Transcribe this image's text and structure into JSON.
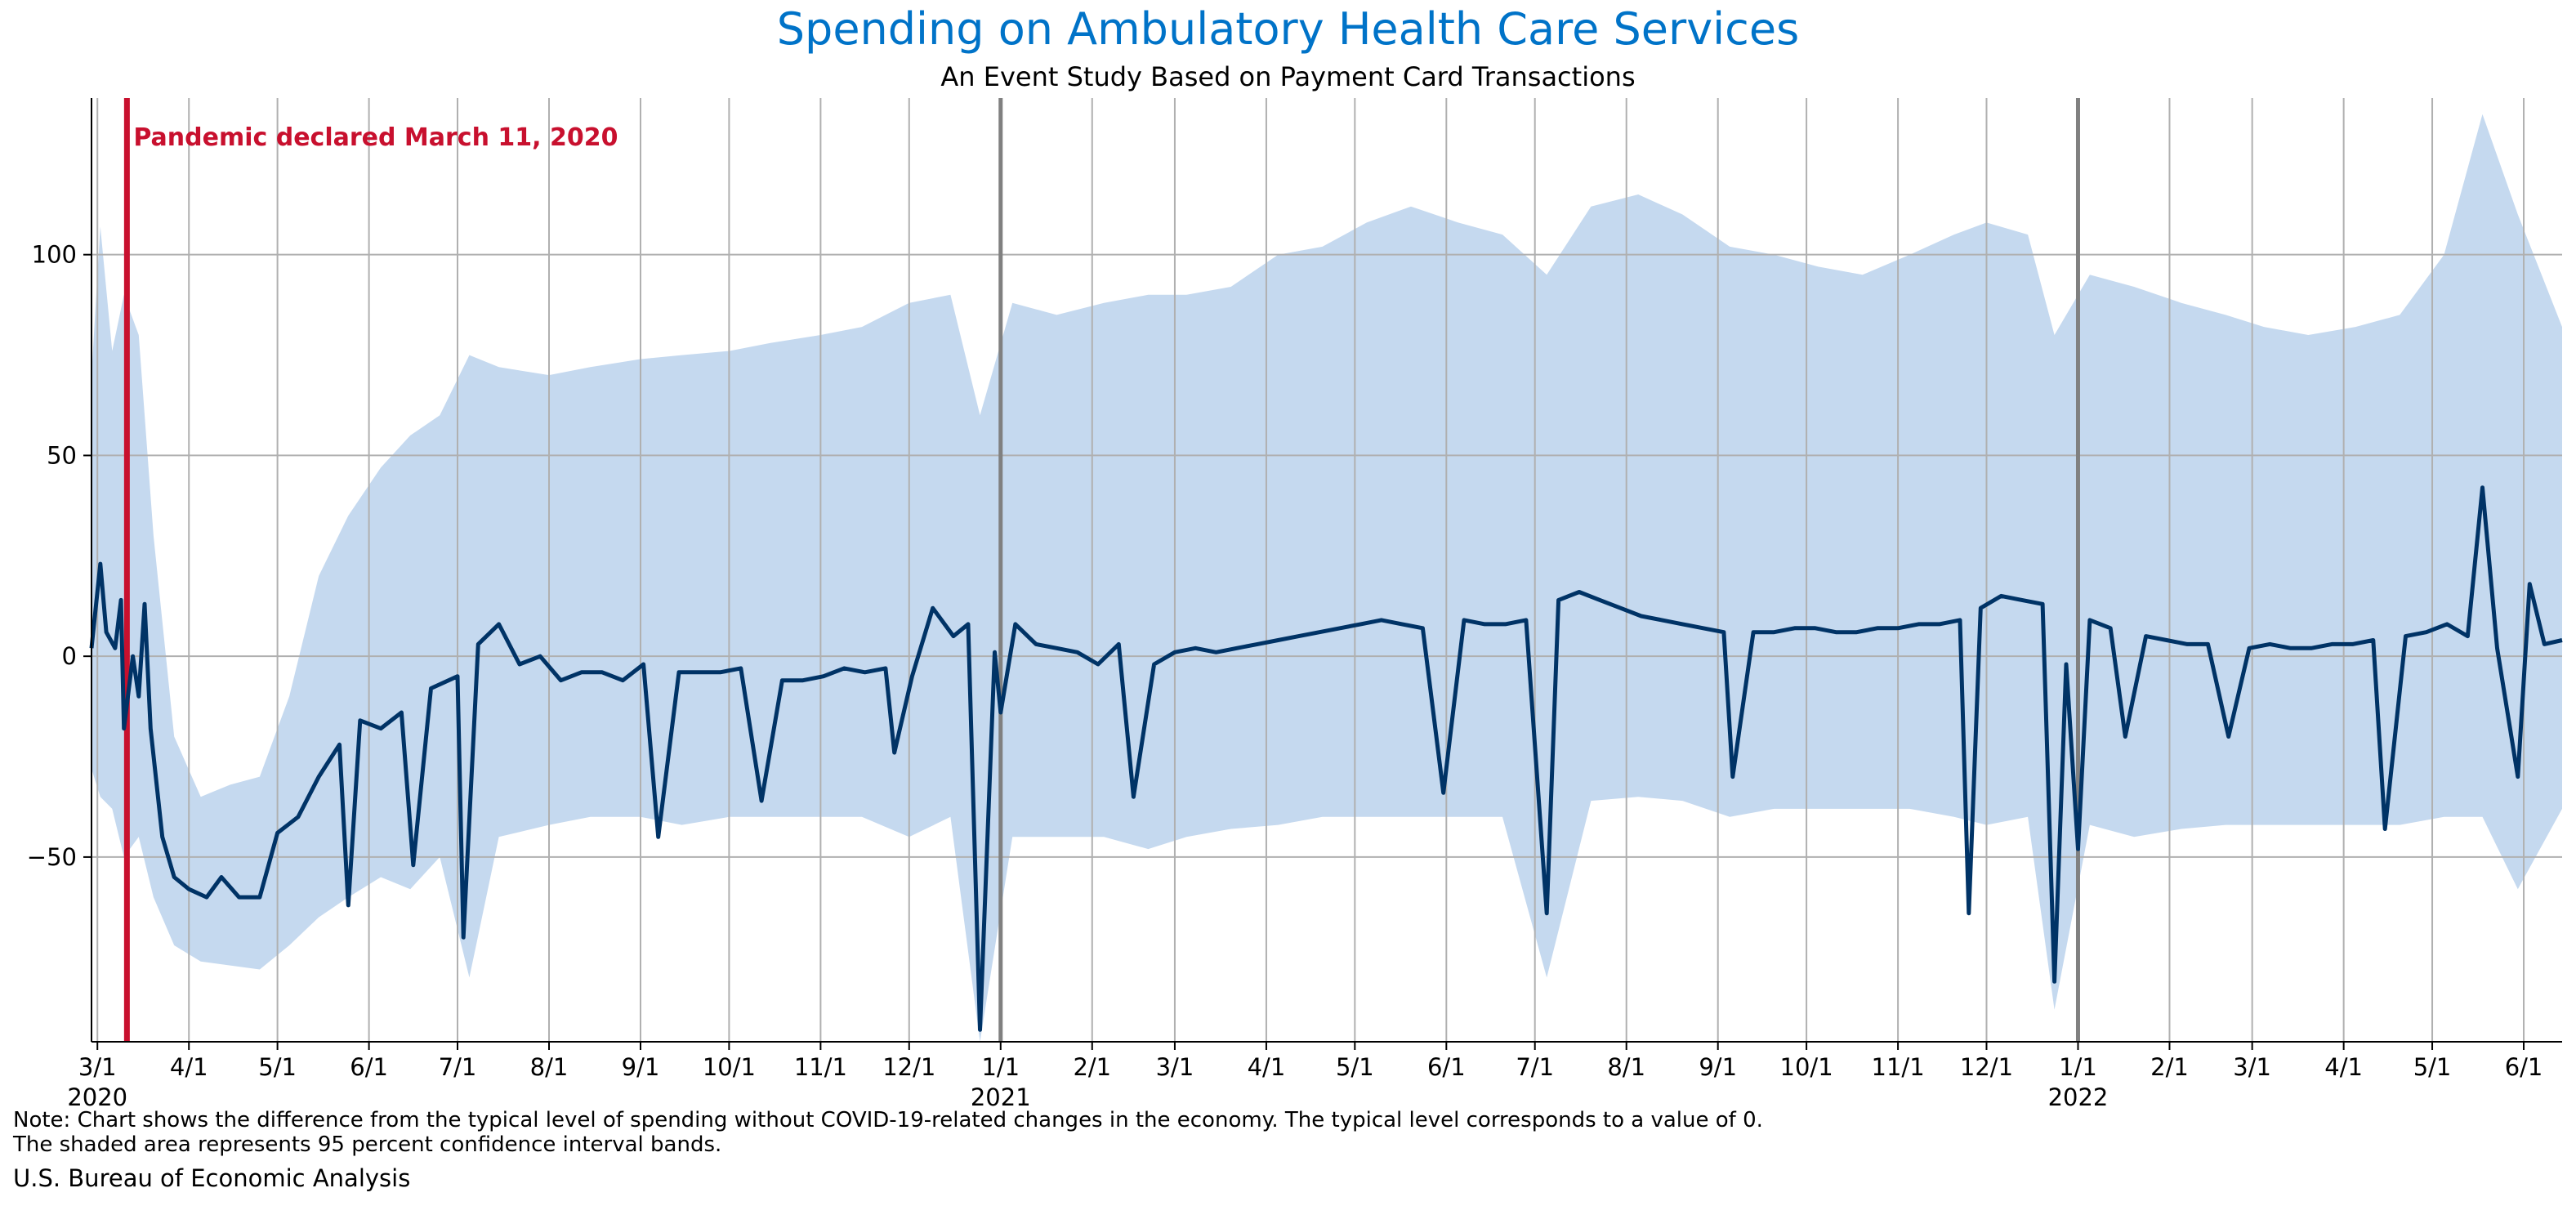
{
  "chart_data": {
    "type": "line",
    "title": "Spending on Ambulatory Health Care Services",
    "subtitle": "An Event Study Based on Payment Card Transactions",
    "xlabel": "",
    "ylabel": "",
    "x_range": [
      "2020-02-28",
      "2022-06-14"
    ],
    "ylim": [
      -96,
      139
    ],
    "yticks": [
      -50,
      0,
      50,
      100
    ],
    "ytick_labels": [
      "−50",
      "0",
      "50",
      "100"
    ],
    "grid": true,
    "x_ticks": [
      {
        "date": "2020-03-01",
        "label": "3/1"
      },
      {
        "date": "2020-04-01",
        "label": "4/1"
      },
      {
        "date": "2020-05-01",
        "label": "5/1"
      },
      {
        "date": "2020-06-01",
        "label": "6/1"
      },
      {
        "date": "2020-07-01",
        "label": "7/1"
      },
      {
        "date": "2020-08-01",
        "label": "8/1"
      },
      {
        "date": "2020-09-01",
        "label": "9/1"
      },
      {
        "date": "2020-10-01",
        "label": "10/1"
      },
      {
        "date": "2020-11-01",
        "label": "11/1"
      },
      {
        "date": "2020-12-01",
        "label": "12/1"
      },
      {
        "date": "2021-01-01",
        "label": "1/1"
      },
      {
        "date": "2021-02-01",
        "label": "2/1"
      },
      {
        "date": "2021-03-01",
        "label": "3/1"
      },
      {
        "date": "2021-04-01",
        "label": "4/1"
      },
      {
        "date": "2021-05-01",
        "label": "5/1"
      },
      {
        "date": "2021-06-01",
        "label": "6/1"
      },
      {
        "date": "2021-07-01",
        "label": "7/1"
      },
      {
        "date": "2021-08-01",
        "label": "8/1"
      },
      {
        "date": "2021-09-01",
        "label": "9/1"
      },
      {
        "date": "2021-10-01",
        "label": "10/1"
      },
      {
        "date": "2021-11-01",
        "label": "11/1"
      },
      {
        "date": "2021-12-01",
        "label": "12/1"
      },
      {
        "date": "2022-01-01",
        "label": "1/1"
      },
      {
        "date": "2022-02-01",
        "label": "2/1"
      },
      {
        "date": "2022-03-01",
        "label": "3/1"
      },
      {
        "date": "2022-04-01",
        "label": "4/1"
      },
      {
        "date": "2022-05-01",
        "label": "5/1"
      },
      {
        "date": "2022-06-01",
        "label": "6/1"
      }
    ],
    "year_labels": [
      {
        "date": "2020-03-01",
        "label": "2020"
      },
      {
        "date": "2021-01-01",
        "label": "2021"
      },
      {
        "date": "2022-01-01",
        "label": "2022"
      }
    ],
    "event": {
      "date": "2020-03-11",
      "label": "Pandemic declared March 11, 2020",
      "color": "#c8102e"
    },
    "year_lines": [
      "2021-01-01",
      "2022-01-01"
    ],
    "series": [
      {
        "role": "estimate",
        "color": "#003366",
        "points": [
          [
            "2020-02-28",
            2
          ],
          [
            "2020-03-02",
            23
          ],
          [
            "2020-03-04",
            6
          ],
          [
            "2020-03-07",
            2
          ],
          [
            "2020-03-09",
            14
          ],
          [
            "2020-03-10",
            -18
          ],
          [
            "2020-03-13",
            0
          ],
          [
            "2020-03-15",
            -10
          ],
          [
            "2020-03-17",
            13
          ],
          [
            "2020-03-19",
            -18
          ],
          [
            "2020-03-23",
            -45
          ],
          [
            "2020-03-27",
            -55
          ],
          [
            "2020-04-01",
            -58
          ],
          [
            "2020-04-07",
            -60
          ],
          [
            "2020-04-12",
            -55
          ],
          [
            "2020-04-18",
            -60
          ],
          [
            "2020-04-25",
            -60
          ],
          [
            "2020-05-01",
            -44
          ],
          [
            "2020-05-08",
            -40
          ],
          [
            "2020-05-15",
            -30
          ],
          [
            "2020-05-22",
            -22
          ],
          [
            "2020-05-25",
            -62
          ],
          [
            "2020-05-29",
            -16
          ],
          [
            "2020-06-05",
            -18
          ],
          [
            "2020-06-12",
            -14
          ],
          [
            "2020-06-16",
            -52
          ],
          [
            "2020-06-22",
            -8
          ],
          [
            "2020-07-01",
            -5
          ],
          [
            "2020-07-03",
            -70
          ],
          [
            "2020-07-08",
            3
          ],
          [
            "2020-07-15",
            8
          ],
          [
            "2020-07-22",
            -2
          ],
          [
            "2020-07-29",
            0
          ],
          [
            "2020-08-05",
            -6
          ],
          [
            "2020-08-12",
            -4
          ],
          [
            "2020-08-19",
            -4
          ],
          [
            "2020-08-26",
            -6
          ],
          [
            "2020-09-02",
            -2
          ],
          [
            "2020-09-07",
            -45
          ],
          [
            "2020-09-14",
            -4
          ],
          [
            "2020-09-21",
            -4
          ],
          [
            "2020-09-28",
            -4
          ],
          [
            "2020-10-05",
            -3
          ],
          [
            "2020-10-12",
            -36
          ],
          [
            "2020-10-19",
            -6
          ],
          [
            "2020-10-26",
            -6
          ],
          [
            "2020-11-02",
            -5
          ],
          [
            "2020-11-09",
            -3
          ],
          [
            "2020-11-16",
            -4
          ],
          [
            "2020-11-23",
            -3
          ],
          [
            "2020-11-26",
            -24
          ],
          [
            "2020-12-02",
            -5
          ],
          [
            "2020-12-09",
            12
          ],
          [
            "2020-12-16",
            5
          ],
          [
            "2020-12-21",
            8
          ],
          [
            "2020-12-25",
            -93
          ],
          [
            "2020-12-30",
            1
          ],
          [
            "2021-01-01",
            -14
          ],
          [
            "2021-01-06",
            8
          ],
          [
            "2021-01-13",
            3
          ],
          [
            "2021-01-20",
            2
          ],
          [
            "2021-01-27",
            1
          ],
          [
            "2021-02-03",
            -2
          ],
          [
            "2021-02-10",
            3
          ],
          [
            "2021-02-15",
            -35
          ],
          [
            "2021-02-22",
            -2
          ],
          [
            "2021-03-01",
            1
          ],
          [
            "2021-03-08",
            2
          ],
          [
            "2021-03-15",
            1
          ],
          [
            "2021-03-22",
            2
          ],
          [
            "2021-03-29",
            3
          ],
          [
            "2021-04-05",
            4
          ],
          [
            "2021-04-12",
            5
          ],
          [
            "2021-04-19",
            6
          ],
          [
            "2021-04-26",
            7
          ],
          [
            "2021-05-03",
            8
          ],
          [
            "2021-05-10",
            9
          ],
          [
            "2021-05-17",
            8
          ],
          [
            "2021-05-24",
            7
          ],
          [
            "2021-05-31",
            -34
          ],
          [
            "2021-06-07",
            9
          ],
          [
            "2021-06-14",
            8
          ],
          [
            "2021-06-21",
            8
          ],
          [
            "2021-06-28",
            9
          ],
          [
            "2021-07-05",
            -64
          ],
          [
            "2021-07-09",
            14
          ],
          [
            "2021-07-16",
            16
          ],
          [
            "2021-07-23",
            14
          ],
          [
            "2021-07-30",
            12
          ],
          [
            "2021-08-06",
            10
          ],
          [
            "2021-08-13",
            9
          ],
          [
            "2021-08-20",
            8
          ],
          [
            "2021-08-27",
            7
          ],
          [
            "2021-09-03",
            6
          ],
          [
            "2021-09-06",
            -30
          ],
          [
            "2021-09-13",
            6
          ],
          [
            "2021-09-20",
            6
          ],
          [
            "2021-09-27",
            7
          ],
          [
            "2021-10-04",
            7
          ],
          [
            "2021-10-11",
            6
          ],
          [
            "2021-10-18",
            6
          ],
          [
            "2021-10-25",
            7
          ],
          [
            "2021-11-01",
            7
          ],
          [
            "2021-11-08",
            8
          ],
          [
            "2021-11-15",
            8
          ],
          [
            "2021-11-22",
            9
          ],
          [
            "2021-11-25",
            -64
          ],
          [
            "2021-11-29",
            12
          ],
          [
            "2021-12-06",
            15
          ],
          [
            "2021-12-13",
            14
          ],
          [
            "2021-12-20",
            13
          ],
          [
            "2021-12-24",
            -81
          ],
          [
            "2021-12-28",
            -2
          ],
          [
            "2022-01-01",
            -48
          ],
          [
            "2022-01-05",
            9
          ],
          [
            "2022-01-12",
            7
          ],
          [
            "2022-01-17",
            -20
          ],
          [
            "2022-01-24",
            5
          ],
          [
            "2022-01-31",
            4
          ],
          [
            "2022-02-07",
            3
          ],
          [
            "2022-02-14",
            3
          ],
          [
            "2022-02-21",
            -20
          ],
          [
            "2022-02-28",
            2
          ],
          [
            "2022-03-07",
            3
          ],
          [
            "2022-03-14",
            2
          ],
          [
            "2022-03-21",
            2
          ],
          [
            "2022-03-28",
            3
          ],
          [
            "2022-04-04",
            3
          ],
          [
            "2022-04-11",
            4
          ],
          [
            "2022-04-15",
            -43
          ],
          [
            "2022-04-22",
            5
          ],
          [
            "2022-04-29",
            6
          ],
          [
            "2022-05-06",
            8
          ],
          [
            "2022-05-13",
            5
          ],
          [
            "2022-05-18",
            42
          ],
          [
            "2022-05-23",
            2
          ],
          [
            "2022-05-30",
            -30
          ],
          [
            "2022-06-03",
            18
          ],
          [
            "2022-06-08",
            3
          ],
          [
            "2022-06-14",
            4
          ]
        ]
      }
    ],
    "band": {
      "label": "95 percent confidence interval",
      "color": "#c5d9ef",
      "points": [
        [
          "2020-02-28",
          -28,
          70
        ],
        [
          "2020-03-02",
          -35,
          107
        ],
        [
          "2020-03-06",
          -38,
          76
        ],
        [
          "2020-03-10",
          -50,
          90
        ],
        [
          "2020-03-15",
          -45,
          80
        ],
        [
          "2020-03-20",
          -60,
          30
        ],
        [
          "2020-03-27",
          -72,
          -20
        ],
        [
          "2020-04-05",
          -76,
          -35
        ],
        [
          "2020-04-15",
          -77,
          -32
        ],
        [
          "2020-04-25",
          -78,
          -30
        ],
        [
          "2020-05-05",
          -72,
          -10
        ],
        [
          "2020-05-15",
          -65,
          20
        ],
        [
          "2020-05-25",
          -60,
          35
        ],
        [
          "2020-06-05",
          -55,
          47
        ],
        [
          "2020-06-15",
          -58,
          55
        ],
        [
          "2020-06-25",
          -50,
          60
        ],
        [
          "2020-07-05",
          -80,
          75
        ],
        [
          "2020-07-15",
          -45,
          72
        ],
        [
          "2020-08-01",
          -42,
          70
        ],
        [
          "2020-08-15",
          -40,
          72
        ],
        [
          "2020-09-01",
          -40,
          74
        ],
        [
          "2020-09-15",
          -42,
          75
        ],
        [
          "2020-10-01",
          -40,
          76
        ],
        [
          "2020-10-15",
          -40,
          78
        ],
        [
          "2020-11-01",
          -40,
          80
        ],
        [
          "2020-11-15",
          -40,
          82
        ],
        [
          "2020-12-01",
          -45,
          88
        ],
        [
          "2020-12-15",
          -40,
          90
        ],
        [
          "2020-12-25",
          -96,
          60
        ],
        [
          "2021-01-05",
          -45,
          88
        ],
        [
          "2021-01-20",
          -45,
          85
        ],
        [
          "2021-02-05",
          -45,
          88
        ],
        [
          "2021-02-20",
          -48,
          90
        ],
        [
          "2021-03-05",
          -45,
          90
        ],
        [
          "2021-03-20",
          -43,
          92
        ],
        [
          "2021-04-05",
          -42,
          100
        ],
        [
          "2021-04-20",
          -40,
          102
        ],
        [
          "2021-05-05",
          -40,
          108
        ],
        [
          "2021-05-20",
          -40,
          112
        ],
        [
          "2021-06-05",
          -40,
          108
        ],
        [
          "2021-06-20",
          -40,
          105
        ],
        [
          "2021-07-05",
          -80,
          95
        ],
        [
          "2021-07-20",
          -36,
          112
        ],
        [
          "2021-08-05",
          -35,
          115
        ],
        [
          "2021-08-20",
          -36,
          110
        ],
        [
          "2021-09-05",
          -40,
          102
        ],
        [
          "2021-09-20",
          -38,
          100
        ],
        [
          "2021-10-05",
          -38,
          97
        ],
        [
          "2021-10-20",
          -38,
          95
        ],
        [
          "2021-11-05",
          -38,
          100
        ],
        [
          "2021-11-20",
          -40,
          105
        ],
        [
          "2021-12-01",
          -42,
          108
        ],
        [
          "2021-12-15",
          -40,
          105
        ],
        [
          "2021-12-24",
          -88,
          80
        ],
        [
          "2022-01-05",
          -42,
          95
        ],
        [
          "2022-01-20",
          -45,
          92
        ],
        [
          "2022-02-05",
          -43,
          88
        ],
        [
          "2022-02-20",
          -42,
          85
        ],
        [
          "2022-03-05",
          -42,
          82
        ],
        [
          "2022-03-20",
          -42,
          80
        ],
        [
          "2022-04-05",
          -42,
          82
        ],
        [
          "2022-04-20",
          -42,
          85
        ],
        [
          "2022-05-05",
          -40,
          100
        ],
        [
          "2022-05-18",
          -40,
          135
        ],
        [
          "2022-05-30",
          -58,
          110
        ],
        [
          "2022-06-14",
          -38,
          82
        ]
      ]
    }
  },
  "notes": [
    "Note: Chart shows the difference from the typical level of spending without COVID-19-related changes in the economy. The typical level corresponds to a value of 0.",
    "The shaded area represents 95 percent confidence interval bands."
  ],
  "source": "U.S. Bureau of Economic Analysis",
  "colors": {
    "title": "#0073c8",
    "line": "#003366",
    "band": "#c5d9ef",
    "event": "#c8102e",
    "grid": "#b0b0b0",
    "year_line": "#808080"
  }
}
